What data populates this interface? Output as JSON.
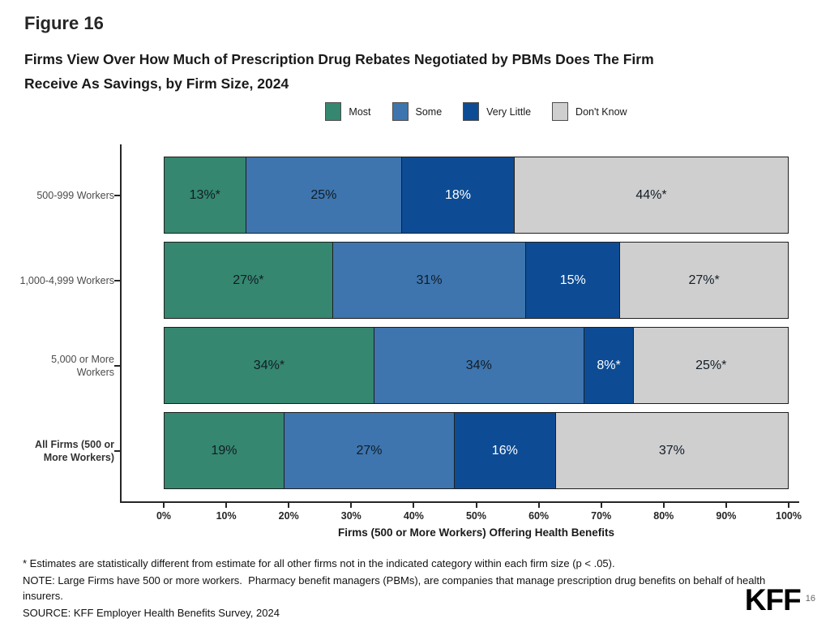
{
  "figure_label": "Figure 16",
  "title": {
    "line1": "Firms View Over How Much of Prescription Drug Rebates Negotiated by PBMs Does The Firm",
    "line2": "Receive As Savings, by Firm Size, 2024"
  },
  "legend": {
    "items": [
      {
        "label": "Most",
        "color": "#35876F"
      },
      {
        "label": "Some",
        "color": "#3E75AE"
      },
      {
        "label": "Very Little",
        "color": "#0D4C94"
      },
      {
        "label": "Don't Know",
        "color": "#CFCFCF"
      }
    ]
  },
  "chart_data": {
    "type": "bar",
    "subtype": "horizontal-stacked",
    "title": "Firms View Over How Much of Prescription Drug Rebates Negotiated by PBMs Does The Firm Receive As Savings, by Firm Size, 2024",
    "categories": [
      {
        "text": "500-999 Workers",
        "bold": false
      },
      {
        "text": "1,000-4,999 Workers",
        "bold": false
      },
      {
        "text": "5,000 or More\nWorkers",
        "bold": false
      },
      {
        "text": "All Firms (500 or\nMore Workers)",
        "bold": true
      }
    ],
    "series": [
      {
        "name": "Most",
        "color": "#35876F",
        "text_color": "#121c26",
        "values": [
          13,
          27,
          34,
          19
        ],
        "labels": [
          "13%*",
          "27%*",
          "34%*",
          "19%"
        ]
      },
      {
        "name": "Some",
        "color": "#3E75AE",
        "text_color": "#121c26",
        "values": [
          25,
          31,
          34,
          27
        ],
        "labels": [
          "25%",
          "31%",
          "34%",
          "27%"
        ]
      },
      {
        "name": "Very Little",
        "color": "#0D4C94",
        "text_color": "#ffffff",
        "values": [
          18,
          15,
          8,
          16
        ],
        "labels": [
          "18%",
          "15%",
          "8%*",
          "16%"
        ]
      },
      {
        "name": "Don't Know",
        "color": "#CFCFCF",
        "text_color": "#121c26",
        "values": [
          44,
          27,
          25,
          37
        ],
        "labels": [
          "44%*",
          "27%*",
          "25%*",
          "37%"
        ]
      }
    ],
    "xlabel": "Firms (500 or More Workers) Offering Health Benefits",
    "x_ticks": [
      "0%",
      "10%",
      "20%",
      "30%",
      "40%",
      "50%",
      "60%",
      "70%",
      "80%",
      "90%",
      "100%"
    ],
    "xlim": [
      0,
      100
    ],
    "legend_position": "top",
    "grid": false
  },
  "footnotes": {
    "star": "* Estimates are statistically different from estimate for all other firms not in the indicated category within each firm size (p < .05).",
    "note": "NOTE: Large Firms have 500 or more workers.  Pharmacy benefit managers (PBMs), are companies that manage prescription drug benefits on behalf of health insurers.",
    "source": "SOURCE: KFF Employer Health Benefits Survey, 2024"
  },
  "branding": {
    "logo": "KFF",
    "page_number": "16"
  }
}
